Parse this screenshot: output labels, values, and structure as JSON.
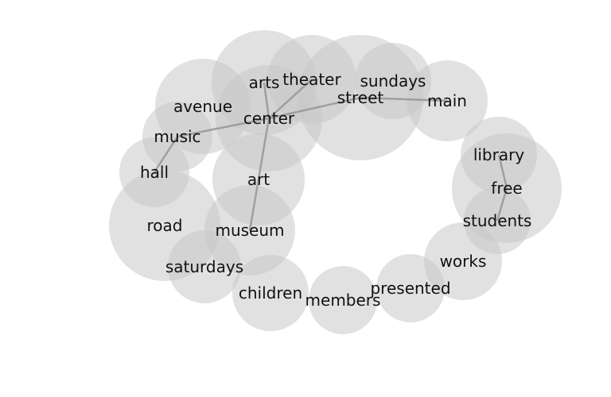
{
  "diagram": {
    "kind": "word co-occurrence bubble network",
    "bubble_color": "#c8c8c8",
    "edge_color": "#999999",
    "text_color": "#111111",
    "nodes": [
      {
        "id": "arts",
        "label": "arts"
      },
      {
        "id": "theater",
        "label": "theater"
      },
      {
        "id": "sundays",
        "label": "sundays"
      },
      {
        "id": "street",
        "label": "street"
      },
      {
        "id": "main",
        "label": "main"
      },
      {
        "id": "avenue",
        "label": "avenue"
      },
      {
        "id": "center",
        "label": "center"
      },
      {
        "id": "music",
        "label": "music"
      },
      {
        "id": "hall",
        "label": "hall"
      },
      {
        "id": "art",
        "label": "art"
      },
      {
        "id": "road",
        "label": "road"
      },
      {
        "id": "museum",
        "label": "museum"
      },
      {
        "id": "saturdays",
        "label": "saturdays"
      },
      {
        "id": "children",
        "label": "children"
      },
      {
        "id": "members",
        "label": "members"
      },
      {
        "id": "presented",
        "label": "presented"
      },
      {
        "id": "works",
        "label": "works"
      },
      {
        "id": "library",
        "label": "library"
      },
      {
        "id": "free",
        "label": "free"
      },
      {
        "id": "students",
        "label": "students"
      }
    ],
    "edges": [
      [
        "arts",
        "center"
      ],
      [
        "theater",
        "center"
      ],
      [
        "center",
        "street"
      ],
      [
        "street",
        "main"
      ],
      [
        "center",
        "music"
      ],
      [
        "music",
        "hall"
      ],
      [
        "center",
        "museum"
      ],
      [
        "library",
        "free"
      ],
      [
        "free",
        "students"
      ]
    ]
  }
}
